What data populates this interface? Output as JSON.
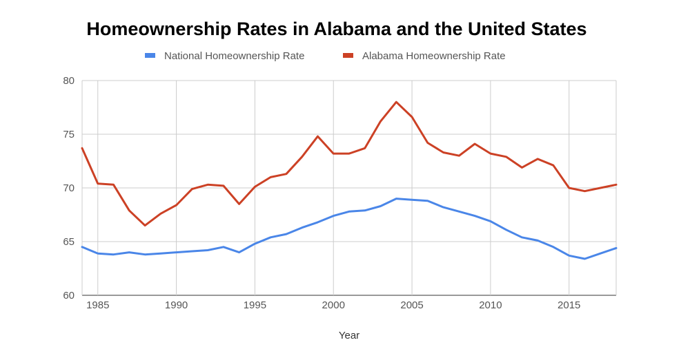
{
  "chart_data": {
    "type": "line",
    "title": "Homeownership Rates in Alabama and the United States",
    "xlabel": "Year",
    "ylabel": "",
    "xlim": [
      1984,
      2018
    ],
    "ylim": [
      60,
      80
    ],
    "x_ticks": [
      "1985",
      "1990",
      "1995",
      "2000",
      "2005",
      "2010",
      "2015"
    ],
    "y_ticks": [
      "60",
      "65",
      "70",
      "75",
      "80"
    ],
    "grid": true,
    "legend_position": "top",
    "x": [
      1984,
      1985,
      1986,
      1987,
      1988,
      1989,
      1990,
      1991,
      1992,
      1993,
      1994,
      1995,
      1996,
      1997,
      1998,
      1999,
      2000,
      2001,
      2002,
      2003,
      2004,
      2005,
      2006,
      2007,
      2008,
      2009,
      2010,
      2011,
      2012,
      2013,
      2014,
      2015,
      2016,
      2017,
      2018
    ],
    "series": [
      {
        "name": "National Homeownership Rate",
        "color": "#4a86e8",
        "values": [
          64.5,
          63.9,
          63.8,
          64.0,
          63.8,
          63.9,
          64.0,
          64.1,
          64.2,
          64.5,
          64.0,
          64.8,
          65.4,
          65.7,
          66.3,
          66.8,
          67.4,
          67.8,
          67.9,
          68.3,
          69.0,
          68.9,
          68.8,
          68.2,
          67.8,
          67.4,
          66.9,
          66.1,
          65.4,
          65.1,
          64.5,
          63.7,
          63.4,
          63.9,
          64.4
        ]
      },
      {
        "name": "Alabama Homeownership Rate",
        "color": "#cc4125",
        "values": [
          73.7,
          70.4,
          70.3,
          67.9,
          66.5,
          67.6,
          68.4,
          69.9,
          70.3,
          70.2,
          68.5,
          70.1,
          71.0,
          71.3,
          72.9,
          74.8,
          73.2,
          73.2,
          73.7,
          76.2,
          78.0,
          76.6,
          74.2,
          73.3,
          73.0,
          74.1,
          73.2,
          72.9,
          71.9,
          72.7,
          72.1,
          70.0,
          69.7,
          70.0,
          70.3
        ]
      }
    ]
  }
}
